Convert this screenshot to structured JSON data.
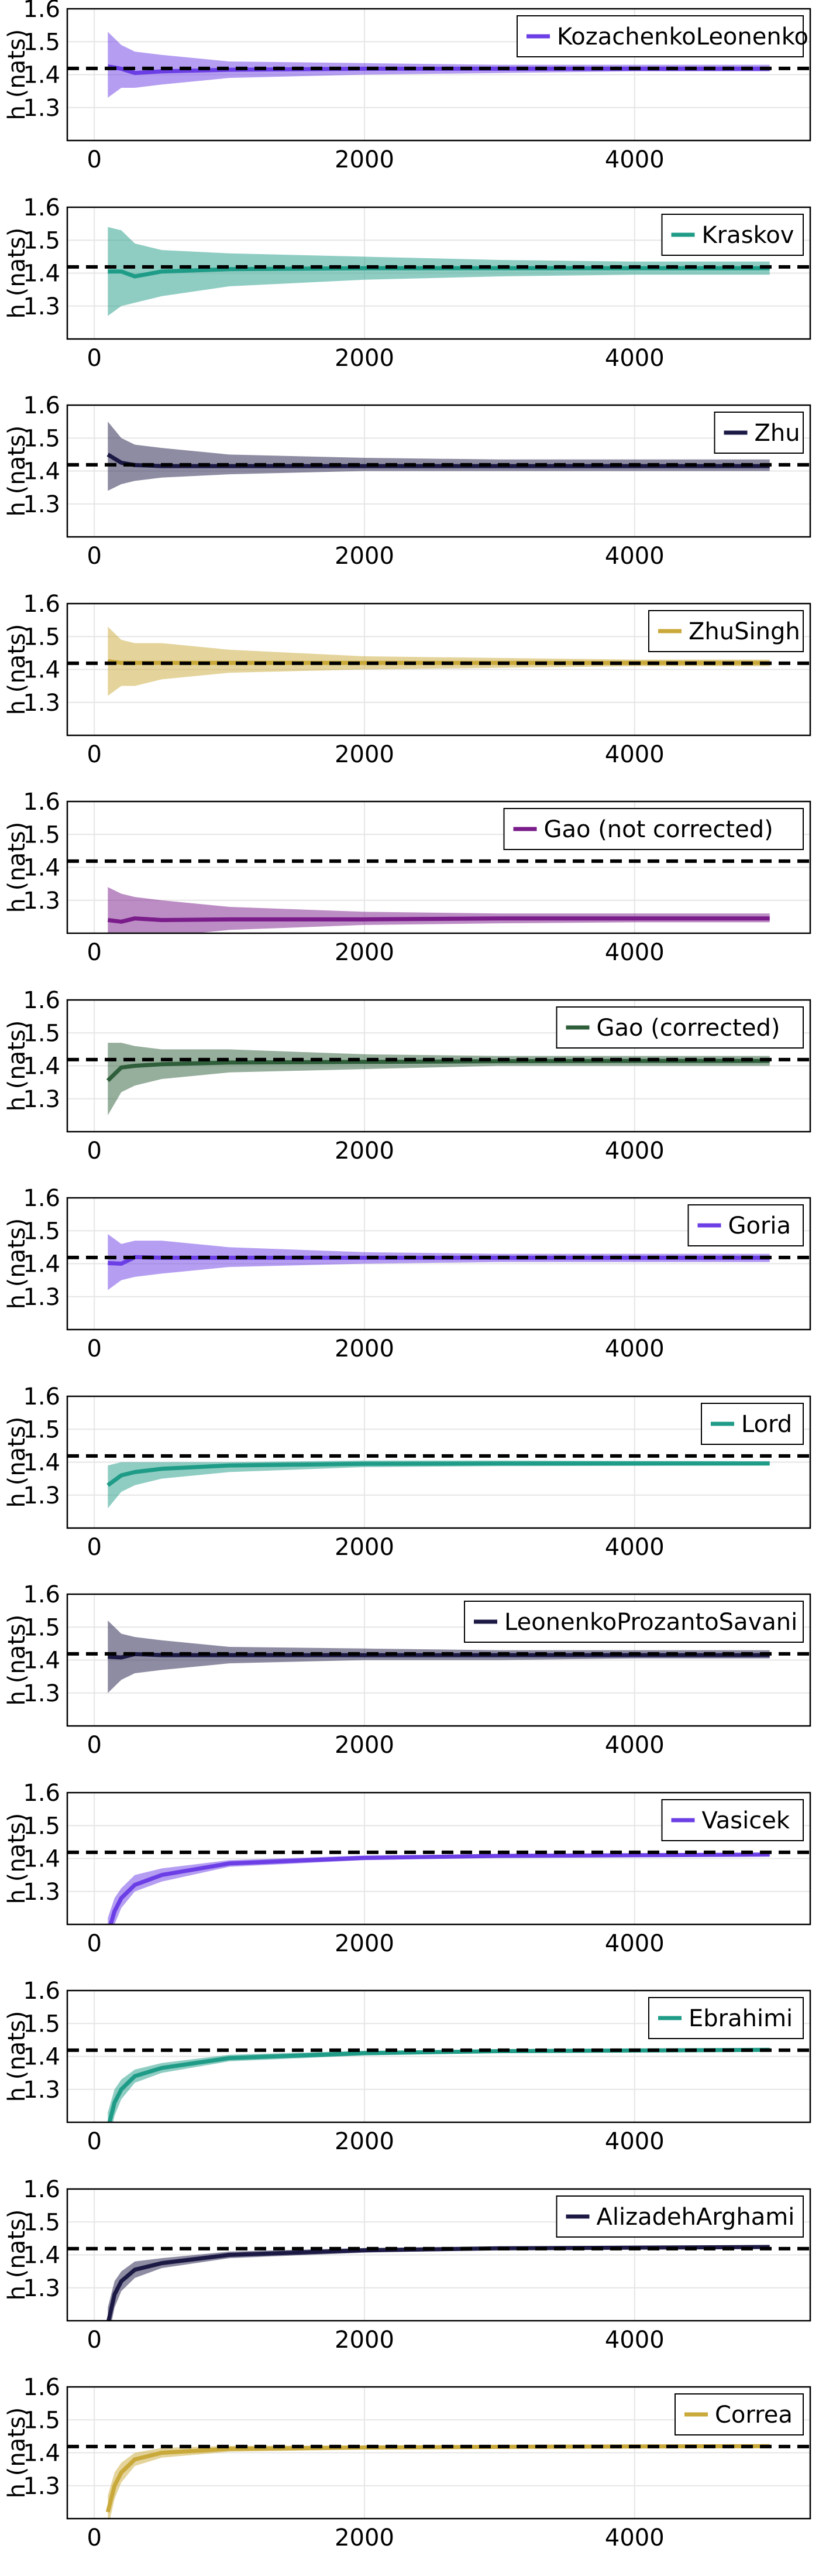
{
  "reference_line_value": 1.4189,
  "chart_data": [
    {
      "type": "line",
      "legend": "KozachenkoLeonenko",
      "ylabel": "h (nats)",
      "xlim": [
        -200,
        5300
      ],
      "ylim": [
        1.2,
        1.6
      ],
      "yticks": [
        "1.3",
        "1.4",
        "1.5",
        "1.6"
      ],
      "xticks": [
        "0",
        "2000",
        "4000"
      ],
      "grid": true,
      "legend_position": "top-right",
      "color": "#6b3ee6",
      "x": [
        100,
        200,
        300,
        500,
        1000,
        2000,
        3000,
        4000,
        5000
      ],
      "y": [
        1.425,
        1.418,
        1.405,
        1.41,
        1.415,
        1.418,
        1.418,
        1.418,
        1.418
      ],
      "lower": [
        1.33,
        1.36,
        1.36,
        1.37,
        1.39,
        1.4,
        1.405,
        1.41,
        1.41
      ],
      "upper": [
        1.53,
        1.49,
        1.47,
        1.46,
        1.44,
        1.435,
        1.43,
        1.43,
        1.43
      ]
    },
    {
      "type": "line",
      "legend": "Kraskov",
      "ylabel": "h (nats)",
      "xlim": [
        -200,
        5300
      ],
      "ylim": [
        1.2,
        1.6
      ],
      "yticks": [
        "1.3",
        "1.4",
        "1.5",
        "1.6"
      ],
      "xticks": [
        "0",
        "2000",
        "4000"
      ],
      "grid": true,
      "legend_position": "top-right",
      "color": "#1f9c87",
      "x": [
        100,
        200,
        300,
        500,
        1000,
        2000,
        3000,
        4000,
        5000
      ],
      "y": [
        1.405,
        1.405,
        1.39,
        1.405,
        1.412,
        1.415,
        1.415,
        1.415,
        1.415
      ],
      "lower": [
        1.27,
        1.3,
        1.31,
        1.33,
        1.36,
        1.38,
        1.39,
        1.395,
        1.395
      ],
      "upper": [
        1.54,
        1.53,
        1.49,
        1.47,
        1.46,
        1.45,
        1.44,
        1.435,
        1.435
      ]
    },
    {
      "type": "line",
      "legend": "Zhu",
      "ylabel": "h (nats)",
      "xlim": [
        -200,
        5300
      ],
      "ylim": [
        1.2,
        1.6
      ],
      "yticks": [
        "1.3",
        "1.4",
        "1.5",
        "1.6"
      ],
      "xticks": [
        "0",
        "2000",
        "4000"
      ],
      "grid": true,
      "legend_position": "top-right",
      "color": "#1c1a45",
      "x": [
        100,
        200,
        300,
        500,
        1000,
        2000,
        3000,
        4000,
        5000
      ],
      "y": [
        1.45,
        1.425,
        1.418,
        1.415,
        1.415,
        1.415,
        1.415,
        1.415,
        1.415
      ],
      "lower": [
        1.34,
        1.36,
        1.37,
        1.38,
        1.39,
        1.4,
        1.4,
        1.4,
        1.4
      ],
      "upper": [
        1.55,
        1.5,
        1.48,
        1.47,
        1.45,
        1.44,
        1.435,
        1.435,
        1.435
      ]
    },
    {
      "type": "line",
      "legend": "ZhuSingh",
      "ylabel": "h (nats)",
      "xlim": [
        -200,
        5300
      ],
      "ylim": [
        1.2,
        1.6
      ],
      "yticks": [
        "1.3",
        "1.4",
        "1.5",
        "1.6"
      ],
      "xticks": [
        "0",
        "2000",
        "4000"
      ],
      "grid": true,
      "legend_position": "top-right",
      "color": "#c9a93a",
      "x": [
        100,
        200,
        300,
        500,
        1000,
        2000,
        3000,
        4000,
        5000
      ],
      "y": [
        1.425,
        1.42,
        1.42,
        1.42,
        1.42,
        1.42,
        1.42,
        1.42,
        1.42
      ],
      "lower": [
        1.32,
        1.35,
        1.35,
        1.37,
        1.39,
        1.4,
        1.405,
        1.41,
        1.41
      ],
      "upper": [
        1.53,
        1.49,
        1.48,
        1.48,
        1.46,
        1.44,
        1.435,
        1.43,
        1.43
      ]
    },
    {
      "type": "line",
      "legend": "Gao (not corrected)",
      "ylabel": "h (nats)",
      "xlim": [
        -200,
        5300
      ],
      "ylim": [
        1.2,
        1.6
      ],
      "yticks": [
        "1.3",
        "1.4",
        "1.5",
        "1.6"
      ],
      "xticks": [
        "0",
        "2000",
        "4000"
      ],
      "grid": true,
      "legend_position": "top-right",
      "color": "#7a1c8a",
      "x": [
        100,
        200,
        300,
        500,
        1000,
        2000,
        3000,
        4000,
        5000
      ],
      "y": [
        1.24,
        1.235,
        1.245,
        1.24,
        1.242,
        1.242,
        1.245,
        1.245,
        1.245
      ],
      "lower": [
        1.15,
        1.17,
        1.18,
        1.19,
        1.21,
        1.225,
        1.23,
        1.233,
        1.233
      ],
      "upper": [
        1.34,
        1.32,
        1.31,
        1.3,
        1.28,
        1.265,
        1.26,
        1.26,
        1.26
      ]
    },
    {
      "type": "line",
      "legend": "Gao (corrected)",
      "ylabel": "h (nats)",
      "xlim": [
        -200,
        5300
      ],
      "ylim": [
        1.2,
        1.6
      ],
      "yticks": [
        "1.3",
        "1.4",
        "1.5",
        "1.6"
      ],
      "xticks": [
        "0",
        "2000",
        "4000"
      ],
      "grid": true,
      "legend_position": "top-right",
      "color": "#2e5e3a",
      "x": [
        100,
        200,
        300,
        500,
        1000,
        2000,
        3000,
        4000,
        5000
      ],
      "y": [
        1.355,
        1.395,
        1.4,
        1.405,
        1.41,
        1.412,
        1.414,
        1.415,
        1.415
      ],
      "lower": [
        1.25,
        1.32,
        1.34,
        1.36,
        1.38,
        1.39,
        1.4,
        1.4,
        1.4
      ],
      "upper": [
        1.47,
        1.47,
        1.46,
        1.45,
        1.45,
        1.435,
        1.43,
        1.43,
        1.43
      ]
    },
    {
      "type": "line",
      "legend": "Goria",
      "ylabel": "h (nats)",
      "xlim": [
        -200,
        5300
      ],
      "ylim": [
        1.2,
        1.6
      ],
      "yticks": [
        "1.3",
        "1.4",
        "1.5",
        "1.6"
      ],
      "xticks": [
        "0",
        "2000",
        "4000"
      ],
      "grid": true,
      "legend_position": "top-right",
      "color": "#6b3ee6",
      "x": [
        100,
        200,
        300,
        500,
        1000,
        2000,
        3000,
        4000,
        5000
      ],
      "y": [
        1.402,
        1.4,
        1.42,
        1.418,
        1.418,
        1.418,
        1.418,
        1.418,
        1.418
      ],
      "lower": [
        1.32,
        1.35,
        1.36,
        1.37,
        1.39,
        1.4,
        1.405,
        1.405,
        1.405
      ],
      "upper": [
        1.49,
        1.46,
        1.47,
        1.47,
        1.45,
        1.435,
        1.43,
        1.43,
        1.43
      ]
    },
    {
      "type": "line",
      "legend": "Lord",
      "ylabel": "h (nats)",
      "xlim": [
        -200,
        5300
      ],
      "ylim": [
        1.2,
        1.6
      ],
      "yticks": [
        "1.3",
        "1.4",
        "1.5",
        "1.6"
      ],
      "xticks": [
        "0",
        "2000",
        "4000"
      ],
      "grid": true,
      "legend_position": "top-right",
      "color": "#1f9c87",
      "x": [
        100,
        200,
        300,
        500,
        1000,
        2000,
        3000,
        4000,
        5000
      ],
      "y": [
        1.33,
        1.36,
        1.37,
        1.38,
        1.39,
        1.395,
        1.396,
        1.396,
        1.396
      ],
      "lower": [
        1.26,
        1.31,
        1.33,
        1.35,
        1.37,
        1.385,
        1.388,
        1.389,
        1.39
      ],
      "upper": [
        1.39,
        1.4,
        1.4,
        1.4,
        1.4,
        1.405,
        1.405,
        1.404,
        1.403
      ]
    },
    {
      "type": "line",
      "legend": "LeonenkoProzantoSavani",
      "ylabel": "h (nats)",
      "xlim": [
        -200,
        5300
      ],
      "ylim": [
        1.2,
        1.6
      ],
      "yticks": [
        "1.3",
        "1.4",
        "1.5",
        "1.6"
      ],
      "xticks": [
        "0",
        "2000",
        "4000"
      ],
      "grid": true,
      "legend_position": "top-right",
      "color": "#1c1a45",
      "x": [
        100,
        200,
        300,
        500,
        1000,
        2000,
        3000,
        4000,
        5000
      ],
      "y": [
        1.41,
        1.408,
        1.418,
        1.415,
        1.415,
        1.415,
        1.415,
        1.415,
        1.415
      ],
      "lower": [
        1.3,
        1.34,
        1.36,
        1.37,
        1.39,
        1.4,
        1.4,
        1.405,
        1.405
      ],
      "upper": [
        1.52,
        1.48,
        1.47,
        1.46,
        1.44,
        1.435,
        1.43,
        1.43,
        1.43
      ]
    },
    {
      "type": "line",
      "legend": "Vasicek",
      "ylabel": "h (nats)",
      "xlim": [
        -200,
        5300
      ],
      "ylim": [
        1.2,
        1.6
      ],
      "yticks": [
        "1.3",
        "1.4",
        "1.5",
        "1.6"
      ],
      "xticks": [
        "0",
        "2000",
        "4000"
      ],
      "grid": true,
      "legend_position": "top-right",
      "color": "#6b3ee6",
      "x": [
        100,
        150,
        200,
        300,
        500,
        1000,
        2000,
        3000,
        4000,
        5000
      ],
      "y": [
        1.17,
        1.24,
        1.28,
        1.32,
        1.35,
        1.385,
        1.402,
        1.408,
        1.41,
        1.412
      ],
      "lower": [
        1.12,
        1.2,
        1.25,
        1.3,
        1.33,
        1.375,
        1.395,
        1.403,
        1.406,
        1.408
      ],
      "upper": [
        1.22,
        1.28,
        1.31,
        1.35,
        1.37,
        1.395,
        1.409,
        1.413,
        1.415,
        1.416
      ]
    },
    {
      "type": "line",
      "legend": "Ebrahimi",
      "ylabel": "h (nats)",
      "xlim": [
        -200,
        5300
      ],
      "ylim": [
        1.2,
        1.6
      ],
      "yticks": [
        "1.3",
        "1.4",
        "1.5",
        "1.6"
      ],
      "xticks": [
        "0",
        "2000",
        "4000"
      ],
      "grid": true,
      "legend_position": "top-right",
      "color": "#1f9c87",
      "x": [
        100,
        150,
        200,
        300,
        500,
        1000,
        2000,
        3000,
        4000,
        5000
      ],
      "y": [
        1.18,
        1.26,
        1.3,
        1.34,
        1.365,
        1.395,
        1.41,
        1.416,
        1.418,
        1.42
      ],
      "lower": [
        1.13,
        1.22,
        1.27,
        1.32,
        1.35,
        1.385,
        1.403,
        1.411,
        1.414,
        1.416
      ],
      "upper": [
        1.23,
        1.3,
        1.33,
        1.36,
        1.38,
        1.405,
        1.417,
        1.421,
        1.423,
        1.424
      ]
    },
    {
      "type": "line",
      "legend": "AlizadehArghami",
      "ylabel": "h (nats)",
      "xlim": [
        -200,
        5300
      ],
      "ylim": [
        1.2,
        1.6
      ],
      "yticks": [
        "1.3",
        "1.4",
        "1.5",
        "1.6"
      ],
      "xticks": [
        "0",
        "2000",
        "4000"
      ],
      "grid": true,
      "legend_position": "top-right",
      "color": "#1c1a45",
      "x": [
        100,
        150,
        200,
        300,
        500,
        1000,
        2000,
        3000,
        4000,
        5000
      ],
      "y": [
        1.19,
        1.28,
        1.32,
        1.355,
        1.375,
        1.4,
        1.414,
        1.42,
        1.422,
        1.424
      ],
      "lower": [
        1.14,
        1.24,
        1.29,
        1.33,
        1.36,
        1.39,
        1.407,
        1.415,
        1.418,
        1.42
      ],
      "upper": [
        1.24,
        1.32,
        1.35,
        1.38,
        1.39,
        1.41,
        1.421,
        1.425,
        1.427,
        1.428
      ]
    },
    {
      "type": "line",
      "legend": "Correa",
      "ylabel": "h (nats)",
      "xlim": [
        -200,
        5300
      ],
      "ylim": [
        1.2,
        1.6
      ],
      "yticks": [
        "1.3",
        "1.4",
        "1.5",
        "1.6"
      ],
      "xticks": [
        "0",
        "2000",
        "4000"
      ],
      "grid": true,
      "legend_position": "top-right",
      "color": "#c9a93a",
      "x": [
        100,
        150,
        200,
        300,
        500,
        1000,
        2000,
        3000,
        4000,
        5000
      ],
      "y": [
        1.22,
        1.3,
        1.34,
        1.38,
        1.4,
        1.412,
        1.416,
        1.418,
        1.419,
        1.42
      ],
      "lower": [
        1.17,
        1.26,
        1.31,
        1.36,
        1.385,
        1.403,
        1.41,
        1.413,
        1.415,
        1.416
      ],
      "upper": [
        1.27,
        1.34,
        1.37,
        1.4,
        1.415,
        1.421,
        1.422,
        1.423,
        1.423,
        1.424
      ]
    }
  ]
}
